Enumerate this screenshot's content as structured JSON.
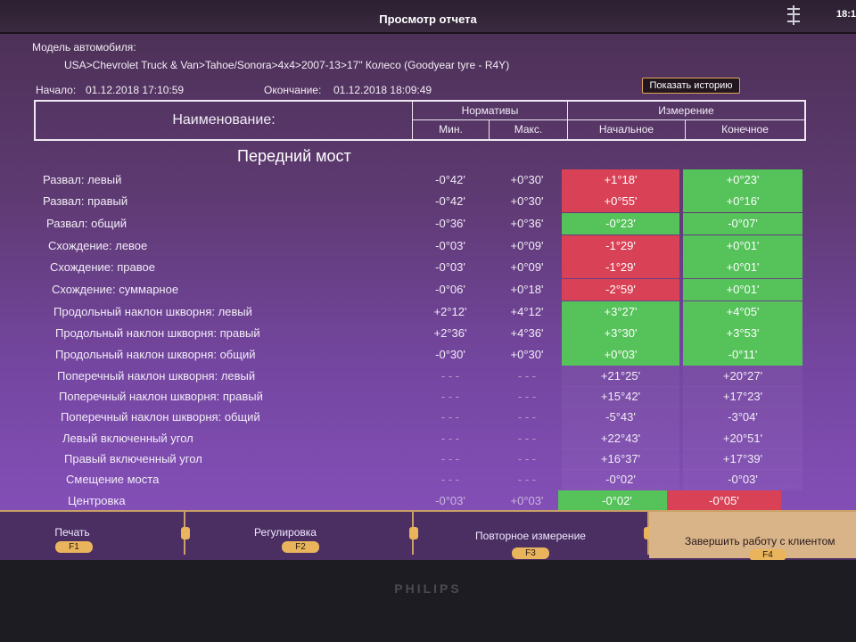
{
  "window": {
    "title": "Просмотр отчета",
    "clock": "18:1"
  },
  "vehicle": {
    "model_label": "Модель автомобиля:",
    "model_value": "USA>Chevrolet Truck & Van>Tahoe/Sonora>4x4>2007-13>17\" Колесо (Goodyear tyre - R4Y)"
  },
  "times": {
    "start_label": "Начало:",
    "start_value": "01.12.2018 17:10:59",
    "end_label": "Окончание:",
    "end_value": "01.12.2018 18:09:49"
  },
  "history_button": "Показать историю",
  "table_header": {
    "name": "Наименование:",
    "norms": "Нормативы",
    "min": "Мин.",
    "max": "Макс.",
    "measurement": "Измерение",
    "initial": "Начальное",
    "final": "Конечное"
  },
  "section_title": "Передний мост",
  "rows": [
    {
      "name": "Развал: левый",
      "min": "-0°42'",
      "max": "+0°30'",
      "initial": "+1°18'",
      "final": "+0°23'",
      "initial_status": "red",
      "final_status": "green"
    },
    {
      "name": "Развал: правый",
      "min": "-0°42'",
      "max": "+0°30'",
      "initial": "+0°55'",
      "final": "+0°16'",
      "initial_status": "red",
      "final_status": "green"
    },
    {
      "name": "Развал: общий",
      "min": "-0°36'",
      "max": "+0°36'",
      "initial": "-0°23'",
      "final": "-0°07'",
      "initial_status": "green",
      "final_status": "green"
    },
    {
      "name": "Схождение: левое",
      "min": "-0°03'",
      "max": "+0°09'",
      "initial": "-1°29'",
      "final": "+0°01'",
      "initial_status": "red",
      "final_status": "green"
    },
    {
      "name": "Схождение: правое",
      "min": "-0°03'",
      "max": "+0°09'",
      "initial": "-1°29'",
      "final": "+0°01'",
      "initial_status": "red",
      "final_status": "green"
    },
    {
      "name": "Схождение: суммарное",
      "min": "-0°06'",
      "max": "+0°18'",
      "initial": "-2°59'",
      "final": "+0°01'",
      "initial_status": "red",
      "final_status": "green"
    },
    {
      "name": "Продольный наклон шкворня: левый",
      "min": "+2°12'",
      "max": "+4°12'",
      "initial": "+3°27'",
      "final": "+4°05'",
      "initial_status": "green",
      "final_status": "green"
    },
    {
      "name": "Продольный наклон шкворня: правый",
      "min": "+2°36'",
      "max": "+4°36'",
      "initial": "+3°30'",
      "final": "+3°53'",
      "initial_status": "green",
      "final_status": "green"
    },
    {
      "name": "Продольный наклон шкворня: общий",
      "min": "-0°30'",
      "max": "+0°30'",
      "initial": "+0°03'",
      "final": "-0°11'",
      "initial_status": "green",
      "final_status": "green"
    },
    {
      "name": "Поперечный наклон шкворня: левый",
      "min": "- - -",
      "max": "- - -",
      "initial": "+21°25'",
      "final": "+20°27'",
      "initial_status": "none",
      "final_status": "none"
    },
    {
      "name": "Поперечный наклон шкворня: правый",
      "min": "- - -",
      "max": "- - -",
      "initial": "+15°42'",
      "final": "+17°23'",
      "initial_status": "none",
      "final_status": "none"
    },
    {
      "name": "Поперечный наклон шкворня: общий",
      "min": "- - -",
      "max": "- - -",
      "initial": "-5°43'",
      "final": "-3°04'",
      "initial_status": "none",
      "final_status": "none"
    },
    {
      "name": "Левый включенный угол",
      "min": "- - -",
      "max": "- - -",
      "initial": "+22°43'",
      "final": "+20°51'",
      "initial_status": "none",
      "final_status": "none"
    },
    {
      "name": "Правый включенный угол",
      "min": "- - -",
      "max": "- - -",
      "initial": "+16°37'",
      "final": "+17°39'",
      "initial_status": "none",
      "final_status": "none"
    },
    {
      "name": "Смещение моста",
      "min": "- - -",
      "max": "- - -",
      "initial": "-0°02'",
      "final": "-0°03'",
      "initial_status": "none",
      "final_status": "none"
    },
    {
      "name": "Центровка",
      "min": "-0°03'",
      "max": "+0°03'",
      "initial": "-0°02'",
      "final": "-0°05'",
      "initial_status": "green",
      "final_status": "red"
    }
  ],
  "footer": [
    {
      "label": "Печать",
      "key": "F1"
    },
    {
      "label": "Регулировка",
      "key": "F2"
    },
    {
      "label": "Повторное измерение",
      "key": "F3"
    },
    {
      "label": "Завершить работу с клиентом",
      "key": "F4"
    }
  ],
  "monitor_brand": "PHILIPS",
  "colors": {
    "out_of_range": "#d94256",
    "in_range": "#55c25a",
    "accent": "#e9b45c"
  }
}
